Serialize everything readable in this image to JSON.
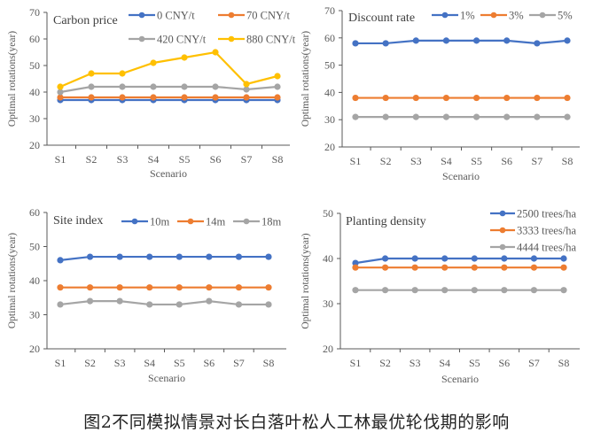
{
  "caption": "图2不同模拟情景对长白落叶松人工林最优轮伐期的影响",
  "colors": {
    "blue": "#4472C4",
    "orange": "#ED7D31",
    "gray": "#A5A5A5",
    "yellow": "#FFC000",
    "axis": "#595959",
    "text": "#595959"
  },
  "chart_data": [
    {
      "type": "line",
      "title": "Carbon price",
      "xlabel": "Scenario",
      "ylabel": "Optimal rotations(year)",
      "categories": [
        "S1",
        "S2",
        "S3",
        "S4",
        "S5",
        "S6",
        "S7",
        "S8"
      ],
      "ylim": [
        20,
        70
      ],
      "yticks": [
        20,
        30,
        40,
        50,
        60,
        70
      ],
      "legend": "top",
      "series": [
        {
          "name": "0 CNY/t",
          "color": "blue",
          "values": [
            37,
            37,
            37,
            37,
            37,
            37,
            37,
            37
          ]
        },
        {
          "name": "70 CNY/t",
          "color": "orange",
          "values": [
            38,
            38,
            38,
            38,
            38,
            38,
            38,
            38
          ]
        },
        {
          "name": "420 CNY/t",
          "color": "gray",
          "values": [
            40,
            42,
            42,
            42,
            42,
            42,
            41,
            42
          ]
        },
        {
          "name": "880 CNY/t",
          "color": "yellow",
          "values": [
            42,
            47,
            47,
            51,
            53,
            55,
            43,
            46
          ]
        }
      ]
    },
    {
      "type": "line",
      "title": "Discount rate",
      "xlabel": "Scenario",
      "ylabel": "Optimal rotations(year)",
      "categories": [
        "S1",
        "S2",
        "S3",
        "S4",
        "S5",
        "S6",
        "S7",
        "S8"
      ],
      "ylim": [
        20,
        70
      ],
      "yticks": [
        20,
        30,
        40,
        50,
        60,
        70
      ],
      "legend": "top",
      "series": [
        {
          "name": "1%",
          "color": "blue",
          "values": [
            58,
            58,
            59,
            59,
            59,
            59,
            58,
            59
          ]
        },
        {
          "name": "3%",
          "color": "orange",
          "values": [
            38,
            38,
            38,
            38,
            38,
            38,
            38,
            38
          ]
        },
        {
          "name": "5%",
          "color": "gray",
          "values": [
            31,
            31,
            31,
            31,
            31,
            31,
            31,
            31
          ]
        }
      ]
    },
    {
      "type": "line",
      "title": "Site index",
      "xlabel": "Scenario",
      "ylabel": "Optimal rotations(year)",
      "categories": [
        "S1",
        "S2",
        "S3",
        "S4",
        "S5",
        "S6",
        "S7",
        "S8"
      ],
      "ylim": [
        20,
        60
      ],
      "yticks": [
        20,
        30,
        40,
        50,
        60
      ],
      "legend": "top",
      "series": [
        {
          "name": "10m",
          "color": "blue",
          "values": [
            46,
            47,
            47,
            47,
            47,
            47,
            47,
            47
          ]
        },
        {
          "name": "14m",
          "color": "orange",
          "values": [
            38,
            38,
            38,
            38,
            38,
            38,
            38,
            38
          ]
        },
        {
          "name": "18m",
          "color": "gray",
          "values": [
            33,
            34,
            34,
            33,
            33,
            34,
            33,
            33
          ]
        }
      ]
    },
    {
      "type": "line",
      "title": "Planting density",
      "xlabel": "Scenario",
      "ylabel": "Optimal rotations(year)",
      "categories": [
        "S1",
        "S2",
        "S3",
        "S4",
        "S5",
        "S6",
        "S7",
        "S8"
      ],
      "ylim": [
        20,
        50
      ],
      "yticks": [
        20,
        30,
        40,
        50
      ],
      "legend": "top-right",
      "series": [
        {
          "name": "2500 trees/ha",
          "color": "blue",
          "values": [
            39,
            40,
            40,
            40,
            40,
            40,
            40,
            40
          ]
        },
        {
          "name": "3333 trees/ha",
          "color": "orange",
          "values": [
            38,
            38,
            38,
            38,
            38,
            38,
            38,
            38
          ]
        },
        {
          "name": "4444 trees/ha",
          "color": "gray",
          "values": [
            33,
            33,
            33,
            33,
            33,
            33,
            33,
            33
          ]
        }
      ]
    }
  ]
}
